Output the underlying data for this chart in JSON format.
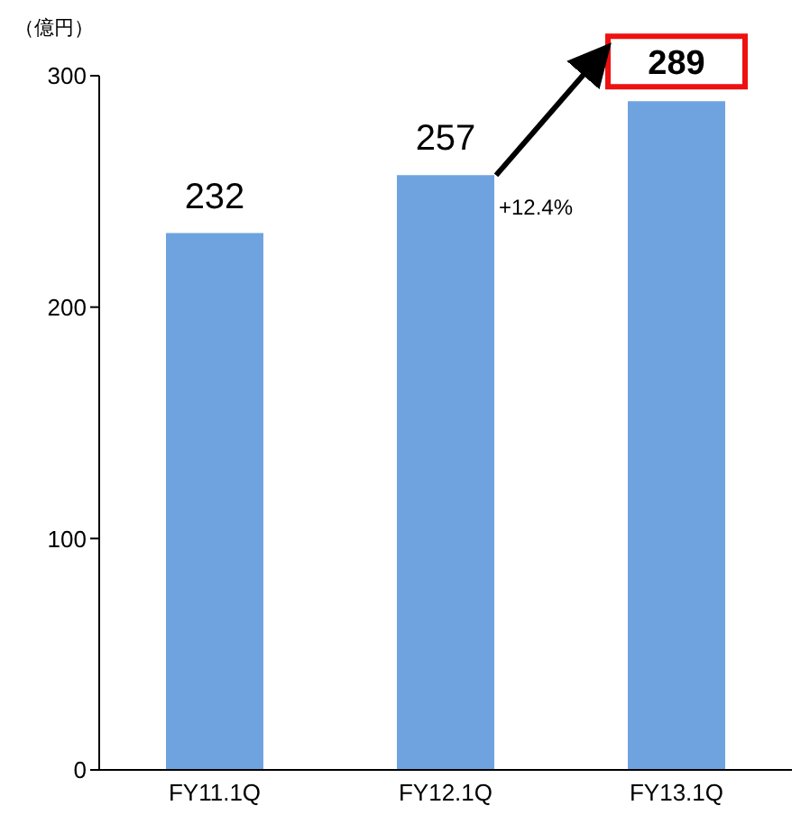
{
  "chart_data": {
    "type": "bar",
    "ylabel": "（億円）",
    "categories": [
      "FY11.1Q",
      "FY12.1Q",
      "FY13.1Q"
    ],
    "values": [
      232,
      257,
      289
    ],
    "color": "#6fa3e0",
    "ylim": [
      0,
      300
    ],
    "yticks": [
      0,
      100,
      200,
      300
    ],
    "data_labels": true,
    "annotations": [
      "+12.4%"
    ]
  }
}
